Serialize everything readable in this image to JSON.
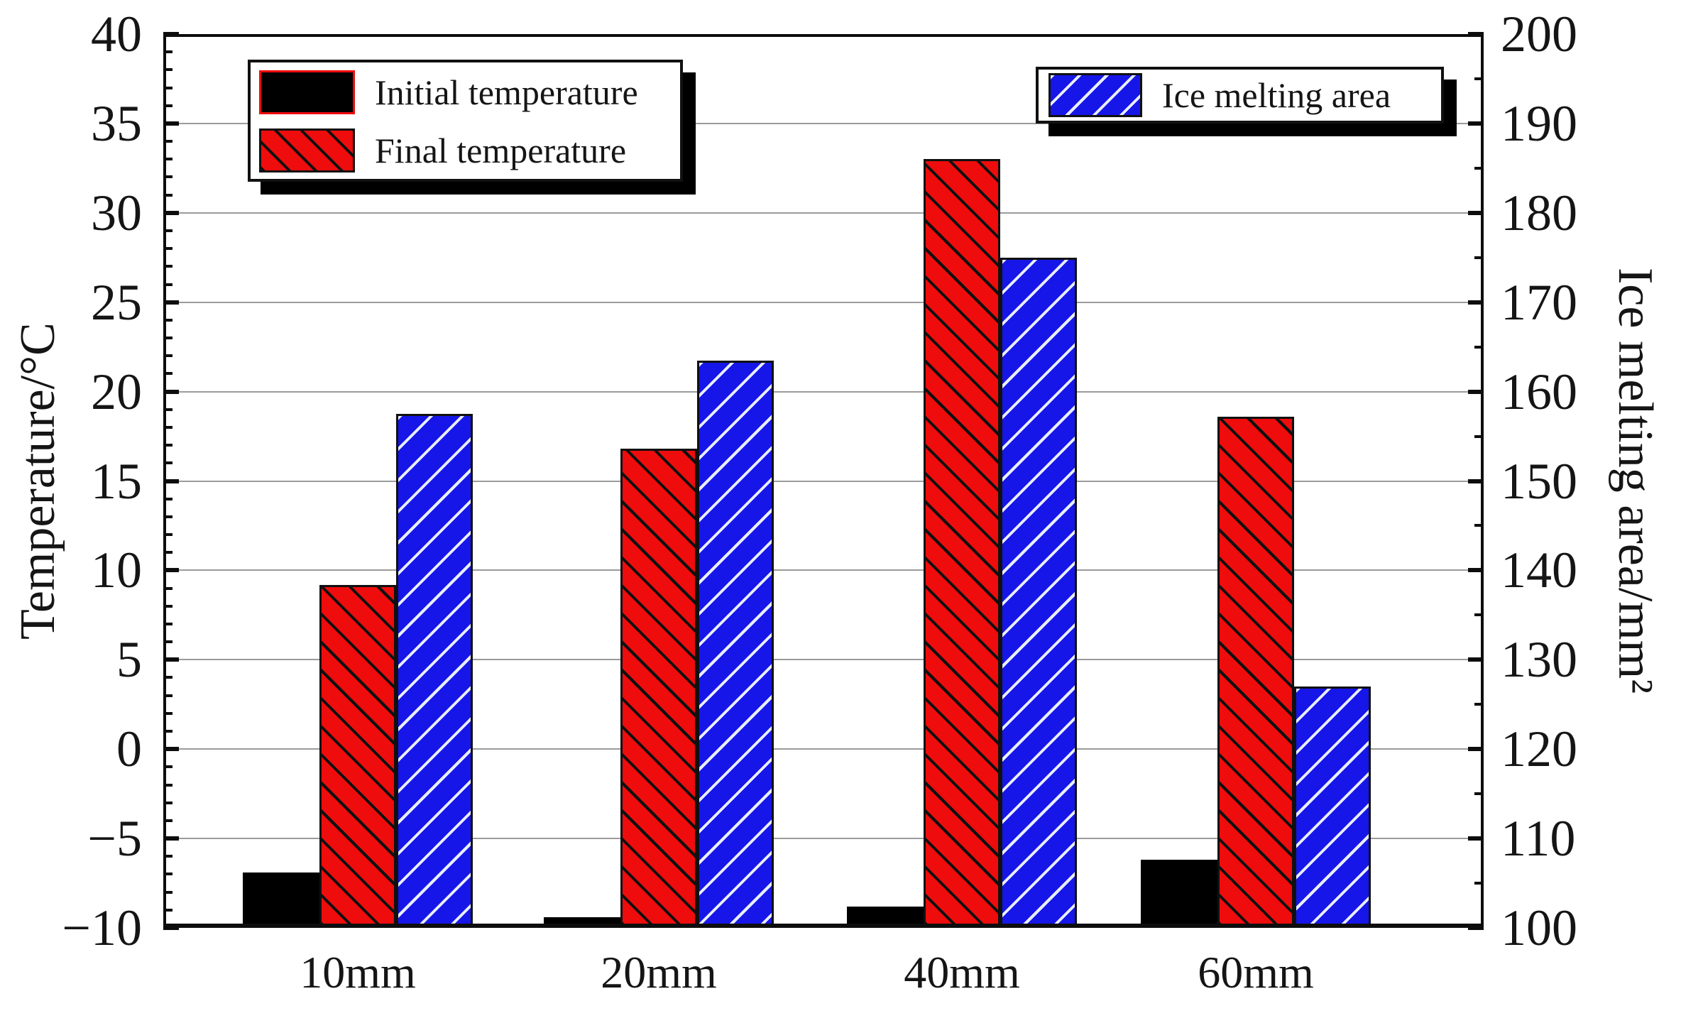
{
  "chart_data": {
    "type": "bar",
    "title": "",
    "categories": [
      "10mm",
      "20mm",
      "40mm",
      "60mm"
    ],
    "series": [
      {
        "name": "Initial temperature",
        "axis": "left",
        "color": "#000000",
        "hatch": "none",
        "values": [
          -6.9,
          -9.4,
          -8.8,
          -6.2
        ]
      },
      {
        "name": "Final temperature",
        "axis": "left",
        "color": "#ee0c0c",
        "hatch": "black-backslash-diagonal",
        "values": [
          9.2,
          16.8,
          33.0,
          18.6
        ]
      },
      {
        "name": "Ice melting area",
        "axis": "right",
        "color": "#1616e8",
        "hatch": "white-slash-diagonal",
        "values": [
          157.5,
          163.5,
          175.0,
          127.0
        ]
      }
    ],
    "left_axis": {
      "label": "Temperature/°C",
      "min": -10,
      "max": 40,
      "major_step": 5,
      "minor_step": 1,
      "tick_labels": [
        "40",
        "35",
        "30",
        "25",
        "20",
        "15",
        "10",
        "5",
        "0",
        "−5",
        "−10"
      ]
    },
    "right_axis": {
      "label": "Ice melting area/mm²",
      "min": 100,
      "max": 200,
      "major_step": 10,
      "minor_step": 5,
      "tick_labels": [
        "200",
        "190",
        "180",
        "170",
        "160",
        "150",
        "140",
        "130",
        "120",
        "110",
        "100"
      ]
    },
    "x_axis": {
      "tick_labels": [
        "10mm",
        "20mm",
        "40mm",
        "60mm"
      ]
    },
    "grid": true,
    "legend_position": {
      "temperature_legend": "top-left-inside",
      "area_legend": "top-right-inside"
    },
    "legends": {
      "temperature": [
        "Initial temperature",
        "Final temperature"
      ],
      "area": [
        "Ice melting area"
      ]
    }
  }
}
